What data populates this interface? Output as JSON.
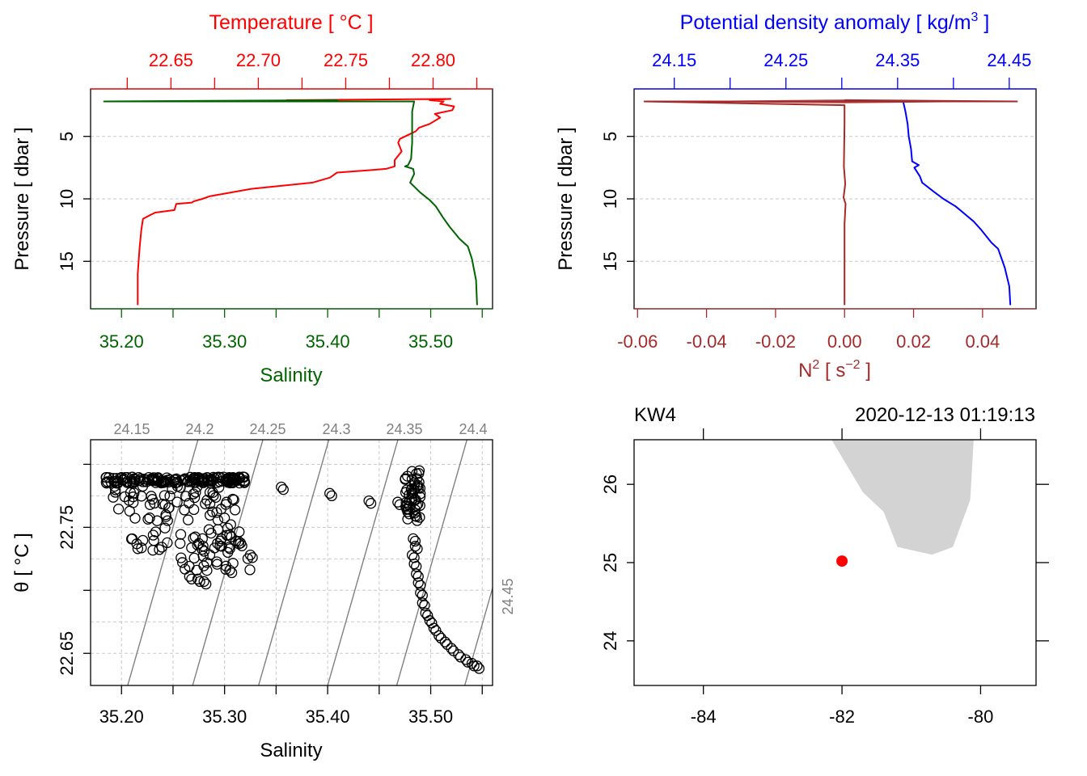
{
  "chart_data": [
    {
      "type": "line",
      "panel": "ts-profile",
      "x_top_title": "Temperature [ °C ]",
      "x_top_ticks": [
        "22.65",
        "22.70",
        "22.75",
        "22.80"
      ],
      "x_top_lim": [
        22.604,
        22.834
      ],
      "x_bottom_title": "Salinity",
      "x_bottom_ticks": [
        "35.20",
        "35.30",
        "35.40",
        "35.50"
      ],
      "x_bottom_lim": [
        35.17,
        35.56
      ],
      "ylabel": "Pressure [ dbar ]",
      "y_ticks": [
        "5",
        "10",
        "15"
      ],
      "ylim": [
        1.2,
        18.8
      ],
      "colors": {
        "temperature": "#ff0000",
        "salinity": "#006400"
      },
      "series": [
        {
          "key": "temperature",
          "x": [
            22.631,
            22.631,
            22.632,
            22.633,
            22.634,
            22.638,
            22.641,
            22.652,
            22.653,
            22.662,
            22.663,
            22.668,
            22.672,
            22.696,
            22.731,
            22.741,
            22.745,
            22.764,
            22.773,
            22.778,
            22.778,
            22.782,
            22.78,
            22.781,
            22.784,
            22.79,
            22.792,
            22.798,
            22.804,
            22.801,
            22.811,
            22.812,
            22.804,
            22.806,
            22.798,
            22.81,
            22.716
          ],
          "y": [
            18.5,
            16.0,
            14.0,
            12.5,
            11.6,
            11.3,
            11.1,
            10.9,
            10.4,
            10.3,
            10.2,
            10.0,
            9.8,
            9.2,
            8.7,
            8.3,
            7.9,
            7.7,
            7.6,
            7.4,
            6.9,
            6.2,
            5.5,
            5.2,
            5.0,
            4.6,
            4.3,
            4.0,
            3.5,
            3.2,
            2.9,
            2.6,
            2.4,
            2.2,
            2.1,
            2.0,
            2.1
          ]
        },
        {
          "key": "salinity",
          "x": [
            35.545,
            35.544,
            35.54,
            35.536,
            35.528,
            35.518,
            35.512,
            35.505,
            35.499,
            35.49,
            35.48,
            35.484,
            35.483,
            35.475,
            35.478,
            35.481,
            35.482,
            35.482,
            35.482,
            35.484,
            35.183,
            35.41
          ],
          "y": [
            18.5,
            16.5,
            14.8,
            13.8,
            13.2,
            12.2,
            11.5,
            10.6,
            10.1,
            9.5,
            8.7,
            8.0,
            7.6,
            7.4,
            7.3,
            6.8,
            5.5,
            4.0,
            3.0,
            2.2,
            2.2,
            2.1
          ]
        }
      ]
    },
    {
      "type": "line",
      "panel": "density-profile",
      "x_top_title": "Potential density anomaly [ kg/m³ ]",
      "x_top_ticks": [
        "24.15",
        "24.25",
        "24.35",
        "24.45"
      ],
      "x_top_lim": [
        24.114,
        24.474
      ],
      "x_bottom_title": "N² [ s⁻² ]",
      "x_bottom_ticks": [
        "-0.06",
        "-0.04",
        "-0.02",
        "0.00",
        "0.02",
        "0.04"
      ],
      "x_bottom_lim": [
        -0.061,
        0.0555
      ],
      "ylabel": "Pressure [ dbar ]",
      "y_ticks": [
        "5",
        "10",
        "15"
      ],
      "ylim": [
        1.2,
        18.8
      ],
      "colors": {
        "sigma": "#0000ff",
        "n2": "#a52a2a"
      },
      "series": [
        {
          "key": "sigma",
          "x": [
            24.451,
            24.45,
            24.446,
            24.44,
            24.434,
            24.425,
            24.418,
            24.41,
            24.402,
            24.391,
            24.382,
            24.372,
            24.37,
            24.365,
            24.369,
            24.363,
            24.362,
            24.36,
            24.359,
            24.357,
            24.355,
            24.143
          ],
          "y": [
            18.5,
            17.0,
            15.5,
            14.0,
            13.5,
            12.5,
            11.8,
            11.2,
            10.6,
            10.0,
            9.4,
            8.7,
            8.2,
            7.5,
            7.3,
            7.0,
            6.0,
            5.0,
            4.0,
            3.0,
            2.2,
            2.2
          ]
        },
        {
          "key": "n2",
          "x": [
            0.0,
            0.0,
            0.0003,
            -0.0003,
            0.0002,
            -0.0002,
            0.0,
            0.0,
            0.0,
            -0.058,
            0.05,
            0.0
          ],
          "y": [
            18.5,
            12.0,
            10.4,
            9.9,
            8.8,
            7.4,
            4.0,
            3.0,
            2.5,
            2.2,
            2.2,
            2.1
          ]
        }
      ]
    },
    {
      "type": "scatter",
      "panel": "theta-s",
      "xlabel": "Salinity",
      "ylabel": "θ [ °C ]",
      "x_ticks": [
        "35.20",
        "35.30",
        "35.40",
        "35.50"
      ],
      "xlim": [
        35.17,
        35.56
      ],
      "y_ticks": [
        "22.65",
        "22.75"
      ],
      "ylim": [
        22.6245,
        22.8195
      ],
      "density_contour_labels": [
        "24.15",
        "24.2",
        "24.25",
        "24.3",
        "24.35",
        "24.4",
        "24.45"
      ],
      "point_clusters": [
        {
          "x": [
            35.185,
            35.32
          ],
          "y": [
            22.785,
            22.79
          ],
          "count": 160
        },
        {
          "x": [
            35.2,
            35.3
          ],
          "y": [
            22.73,
            22.785
          ],
          "count": 90
        },
        {
          "x": [
            35.25,
            35.325
          ],
          "y": [
            22.715,
            22.75
          ],
          "count": 40
        },
        {
          "x": [
            35.475,
            35.49
          ],
          "y": [
            22.755,
            22.795
          ],
          "count": 50
        }
      ],
      "points": [
        {
          "x": 35.355,
          "y": 22.782
        },
        {
          "x": 35.402,
          "y": 22.777
        },
        {
          "x": 35.44,
          "y": 22.771
        },
        {
          "x": 35.468,
          "y": 22.77
        },
        {
          "x": 35.274,
          "y": 22.709
        },
        {
          "x": 35.28,
          "y": 22.707
        },
        {
          "x": 35.266,
          "y": 22.711
        },
        {
          "x": 35.305,
          "y": 22.716
        },
        {
          "x": 35.325,
          "y": 22.728
        },
        {
          "x": 35.483,
          "y": 22.741
        },
        {
          "x": 35.485,
          "y": 22.735
        },
        {
          "x": 35.482,
          "y": 22.728
        },
        {
          "x": 35.484,
          "y": 22.721
        },
        {
          "x": 35.486,
          "y": 22.713
        },
        {
          "x": 35.488,
          "y": 22.706
        },
        {
          "x": 35.49,
          "y": 22.698
        },
        {
          "x": 35.492,
          "y": 22.69
        },
        {
          "x": 35.495,
          "y": 22.682
        },
        {
          "x": 35.499,
          "y": 22.676
        },
        {
          "x": 35.503,
          "y": 22.67
        },
        {
          "x": 35.508,
          "y": 22.664
        },
        {
          "x": 35.514,
          "y": 22.659
        },
        {
          "x": 35.52,
          "y": 22.654
        },
        {
          "x": 35.527,
          "y": 22.649
        },
        {
          "x": 35.534,
          "y": 22.645
        },
        {
          "x": 35.54,
          "y": 22.642
        },
        {
          "x": 35.545,
          "y": 22.64
        }
      ]
    }
  ],
  "map_panel": {
    "station": "KW4",
    "datetime": "2020-12-13 01:19:13",
    "x_ticks": [
      "-84",
      "-82",
      "-80"
    ],
    "xlim": [
      -85.0,
      -79.2
    ],
    "y_ticks": [
      "24",
      "25",
      "26"
    ],
    "ylim": [
      23.43,
      26.57
    ],
    "land_color": "#d3d3d3",
    "station_color": "#ff0000",
    "station_lon": -82.0,
    "station_lat": 25.02,
    "land_outline": [
      [
        -82.15,
        26.57
      ],
      [
        -81.7,
        25.9
      ],
      [
        -81.4,
        25.65
      ],
      [
        -81.2,
        25.2
      ],
      [
        -80.7,
        25.1
      ],
      [
        -80.4,
        25.2
      ],
      [
        -80.15,
        25.8
      ],
      [
        -80.1,
        26.57
      ]
    ]
  }
}
